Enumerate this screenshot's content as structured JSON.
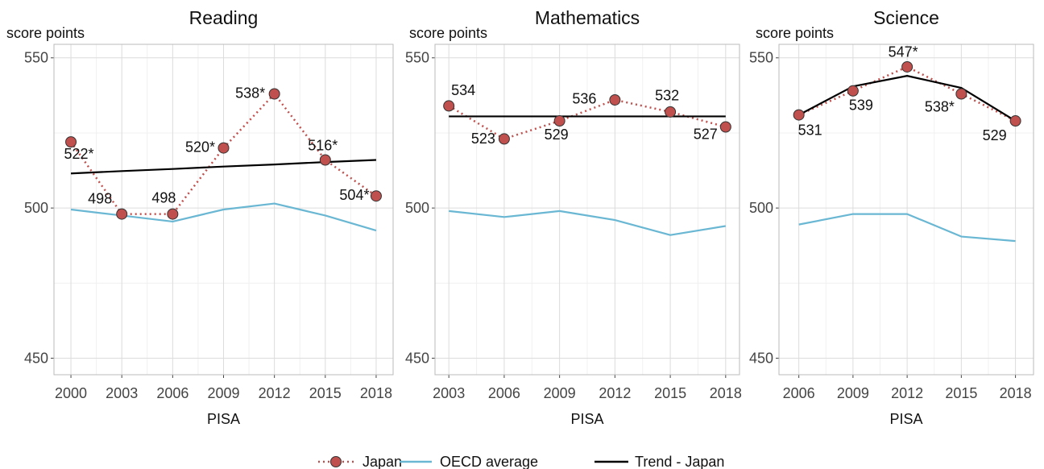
{
  "chart_data": [
    {
      "type": "line",
      "title": "Reading",
      "y_label": "score points",
      "x_label": "PISA",
      "x": [
        2000,
        2003,
        2006,
        2009,
        2012,
        2015,
        2018
      ],
      "xlim": [
        1999,
        2019
      ],
      "xticks": [
        2000,
        2003,
        2006,
        2009,
        2012,
        2015,
        2018
      ],
      "ylim": [
        444.5,
        554.5
      ],
      "yticks": [
        450,
        500,
        550
      ],
      "grid": true,
      "series": [
        {
          "name": "Japan",
          "color": "#c0504d",
          "values": [
            522,
            498,
            498,
            520,
            538,
            516,
            504
          ],
          "value_labels": [
            "522*",
            "498",
            "498",
            "520*",
            "538*",
            "516*",
            "504*"
          ]
        },
        {
          "name": "OECD average",
          "color": "#6ab7d3",
          "values": [
            499.5,
            497.5,
            495.5,
            499.5,
            501.5,
            497.5,
            492.5
          ]
        },
        {
          "name": "Trend - Japan",
          "color": "#000000",
          "values": [
            511.5,
            512.3,
            513,
            513.8,
            514.5,
            515.3,
            516
          ]
        }
      ]
    },
    {
      "type": "line",
      "title": "Mathematics",
      "y_label": "score points",
      "x_label": "PISA",
      "x": [
        2003,
        2006,
        2009,
        2012,
        2015,
        2018
      ],
      "xlim": [
        2002.25,
        2018.75
      ],
      "xticks": [
        2003,
        2006,
        2009,
        2012,
        2015,
        2018
      ],
      "ylim": [
        444.5,
        554.5
      ],
      "yticks": [
        450,
        500,
        550
      ],
      "grid": true,
      "series": [
        {
          "name": "Japan",
          "color": "#c0504d",
          "values": [
            534,
            523,
            529,
            536,
            532,
            527
          ],
          "value_labels": [
            "534",
            "523",
            "529",
            "536",
            "532",
            "527"
          ]
        },
        {
          "name": "OECD average",
          "color": "#6ab7d3",
          "values": [
            499,
            497,
            499,
            496,
            491,
            494
          ]
        },
        {
          "name": "Trend - Japan",
          "color": "#000000",
          "values": [
            530.5,
            530.5,
            530.5,
            530.5,
            530.5,
            530.5
          ]
        }
      ]
    },
    {
      "type": "line",
      "title": "Science",
      "y_label": "score points",
      "x_label": "PISA",
      "x": [
        2006,
        2009,
        2012,
        2015,
        2018
      ],
      "xlim": [
        2004.9,
        2019
      ],
      "xticks": [
        2006,
        2009,
        2012,
        2015,
        2018
      ],
      "ylim": [
        444.5,
        554.5
      ],
      "yticks": [
        450,
        500,
        550
      ],
      "grid": true,
      "series": [
        {
          "name": "Japan",
          "color": "#c0504d",
          "values": [
            531,
            539,
            547,
            538,
            529
          ],
          "value_labels": [
            "531",
            "539",
            "547*",
            "538*",
            "529"
          ]
        },
        {
          "name": "OECD average",
          "color": "#6ab7d3",
          "values": [
            494.5,
            498,
            498,
            490.5,
            489
          ]
        },
        {
          "name": "Trend - Japan",
          "color": "#000000",
          "values": [
            531,
            540.5,
            544,
            540,
            529
          ]
        }
      ]
    }
  ]
}
